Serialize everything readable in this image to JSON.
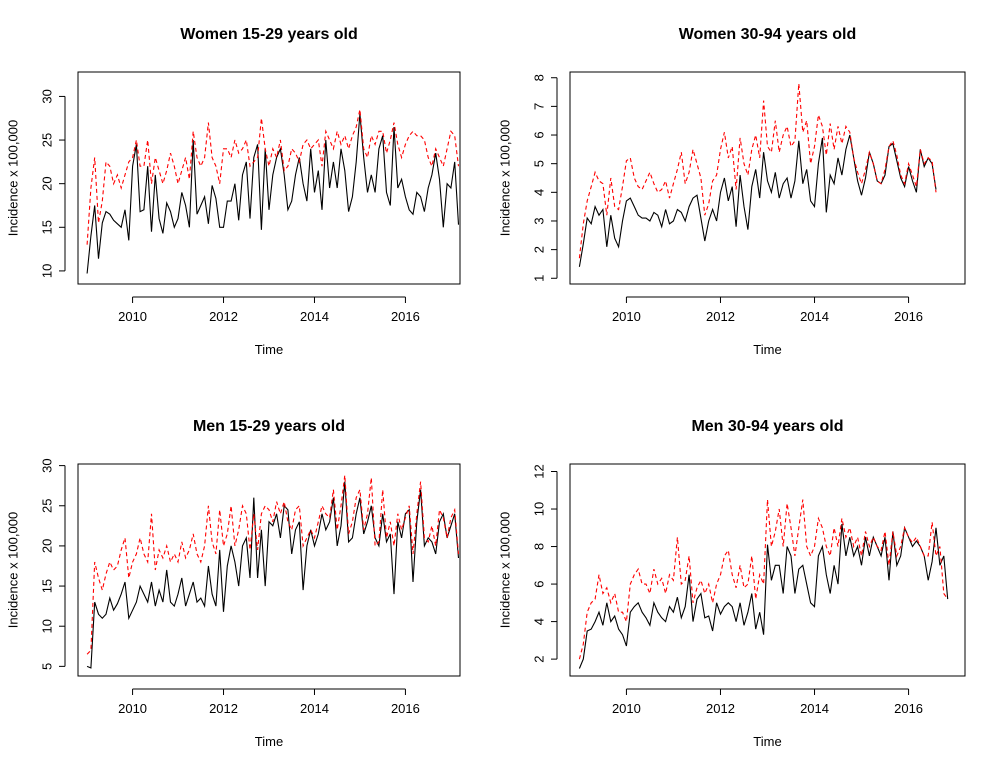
{
  "chart_data": [
    {
      "type": "line",
      "title": "Women 15-29 years old",
      "xlabel": "Time",
      "ylabel": "Incidence x 100,000",
      "xlim": [
        2008.8,
        2017.2
      ],
      "ylim": [
        8.5,
        32.8
      ],
      "xticks": [
        "2010",
        "2012",
        "2014",
        "2016"
      ],
      "yticks": [
        "10",
        "15",
        "20",
        "25",
        "30"
      ],
      "grid": false,
      "x_start": 2009.0,
      "x_step": 0.08333,
      "series": [
        {
          "color": "#000000",
          "dash": "solid",
          "values": [
            9.7,
            14.0,
            17.5,
            11.4,
            15.5,
            16.8,
            16.5,
            15.8,
            15.4,
            15.0,
            17.0,
            13.5,
            22.0,
            24.5,
            16.8,
            17.0,
            22.0,
            14.5,
            21.0,
            16.0,
            14.3,
            17.8,
            16.8,
            15.0,
            16.0,
            19.0,
            17.5,
            15.0,
            25.0,
            16.5,
            17.5,
            18.5,
            15.4,
            19.8,
            18.3,
            15.0,
            15.0,
            18.0,
            18.0,
            20.0,
            15.8,
            21.0,
            22.5,
            16.0,
            23.0,
            24.5,
            14.7,
            24.0,
            17.0,
            21.0,
            23.0,
            24.0,
            21.0,
            17.0,
            18.0,
            21.0,
            23.0,
            20.0,
            18.0,
            24.0,
            19.0,
            21.5,
            17.0,
            25.0,
            19.5,
            22.5,
            19.5,
            24.0,
            21.5,
            16.8,
            18.5,
            22.5,
            28.0,
            23.0,
            19.0,
            21.0,
            19.0,
            24.0,
            25.5,
            19.0,
            17.5,
            26.5,
            19.5,
            20.5,
            18.5,
            17.0,
            16.5,
            19.0,
            18.5,
            16.8,
            19.5,
            21.0,
            23.5,
            20.5,
            15.0,
            20.0,
            19.5,
            22.5,
            15.3
          ]
        },
        {
          "color": "#ff0000",
          "dash": "dashed",
          "values": [
            13.0,
            19.5,
            23.0,
            15.5,
            18.0,
            22.5,
            22.0,
            20.0,
            21.0,
            19.5,
            21.0,
            22.5,
            23.0,
            25.0,
            22.0,
            22.0,
            25.0,
            20.0,
            23.0,
            21.5,
            20.0,
            21.5,
            23.5,
            22.0,
            20.0,
            21.5,
            23.0,
            20.5,
            26.0,
            23.0,
            22.0,
            23.0,
            27.0,
            23.0,
            22.0,
            20.0,
            24.0,
            24.0,
            23.0,
            25.0,
            23.5,
            24.0,
            25.0,
            22.0,
            22.5,
            23.0,
            27.5,
            24.0,
            22.0,
            24.0,
            23.0,
            25.0,
            21.5,
            22.0,
            24.0,
            23.5,
            22.5,
            24.5,
            25.0,
            24.0,
            24.5,
            25.0,
            22.0,
            26.0,
            25.0,
            24.0,
            26.0,
            24.5,
            25.5,
            24.0,
            25.5,
            26.5,
            28.5,
            24.0,
            23.0,
            25.5,
            24.5,
            26.0,
            26.0,
            23.5,
            25.0,
            27.0,
            24.5,
            23.0,
            24.5,
            25.5,
            26.0,
            25.5,
            25.5,
            25.0,
            23.0,
            22.0,
            24.0,
            23.0,
            22.0,
            24.0,
            26.0,
            25.5,
            22.0
          ]
        }
      ]
    },
    {
      "type": "line",
      "title": "Women 30-94 years old",
      "xlabel": "Time",
      "ylabel": "Incidence x 100,000",
      "xlim": [
        2008.8,
        2017.2
      ],
      "ylim": [
        0.8,
        8.2
      ],
      "xticks": [
        "2010",
        "2012",
        "2014",
        "2016"
      ],
      "yticks": [
        "1",
        "2",
        "3",
        "4",
        "5",
        "6",
        "7",
        "8"
      ],
      "grid": false,
      "x_start": 2009.0,
      "x_step": 0.08333,
      "series": [
        {
          "color": "#000000",
          "dash": "solid",
          "values": [
            1.4,
            2.2,
            3.1,
            2.9,
            3.5,
            3.2,
            3.4,
            2.1,
            3.2,
            2.4,
            2.1,
            3.0,
            3.7,
            3.8,
            3.5,
            3.2,
            3.1,
            3.1,
            3.0,
            3.3,
            3.2,
            2.8,
            3.4,
            2.9,
            3.0,
            3.4,
            3.3,
            3.0,
            3.5,
            3.8,
            3.9,
            3.1,
            2.3,
            3.0,
            3.4,
            3.0,
            4.0,
            4.5,
            3.7,
            4.2,
            2.8,
            4.6,
            3.5,
            2.7,
            4.2,
            4.8,
            3.8,
            5.4,
            4.4,
            4.0,
            4.7,
            3.8,
            4.3,
            4.5,
            3.8,
            4.4,
            5.8,
            4.3,
            4.8,
            3.7,
            3.5,
            5.0,
            5.9,
            3.3,
            4.6,
            4.3,
            5.2,
            4.6,
            5.5,
            6.0,
            5.2,
            4.4,
            3.9,
            4.5,
            5.4,
            5.0,
            4.4,
            4.3,
            4.6,
            5.6,
            5.7,
            5.1,
            4.5,
            4.2,
            4.9,
            4.4,
            4.0,
            5.5,
            4.9,
            5.2,
            5.0,
            4.1
          ]
        },
        {
          "color": "#ff0000",
          "dash": "dashed",
          "values": [
            1.7,
            2.9,
            3.7,
            4.2,
            4.7,
            4.4,
            4.3,
            3.2,
            4.5,
            3.5,
            3.4,
            4.2,
            5.1,
            5.2,
            4.5,
            4.2,
            4.1,
            4.4,
            4.7,
            4.3,
            4.0,
            4.1,
            4.4,
            3.8,
            4.3,
            4.8,
            5.4,
            4.3,
            4.7,
            5.5,
            5.0,
            4.5,
            3.2,
            3.6,
            4.4,
            4.6,
            5.5,
            6.1,
            5.2,
            5.6,
            4.1,
            5.9,
            5.0,
            4.6,
            5.5,
            6.0,
            5.2,
            7.2,
            5.6,
            5.4,
            6.5,
            5.4,
            6.0,
            6.3,
            5.6,
            5.8,
            7.8,
            6.1,
            6.5,
            5.0,
            5.6,
            6.7,
            6.3,
            5.3,
            6.4,
            5.5,
            6.3,
            5.7,
            6.3,
            6.1,
            5.2,
            4.7,
            4.3,
            4.8,
            5.4,
            5.0,
            4.4,
            4.3,
            4.8,
            5.6,
            5.8,
            5.3,
            4.6,
            4.3,
            5.0,
            4.6,
            4.2,
            5.5,
            5.0,
            5.2,
            5.1,
            4.0
          ]
        }
      ]
    },
    {
      "type": "line",
      "title": "Men 15-29 years old",
      "xlabel": "Time",
      "ylabel": "Incidence x 100,000",
      "xlim": [
        2008.8,
        2017.2
      ],
      "ylim": [
        3.8,
        30.2
      ],
      "xticks": [
        "2010",
        "2012",
        "2014",
        "2016"
      ],
      "yticks": [
        "5",
        "10",
        "15",
        "20",
        "25",
        "30"
      ],
      "grid": false,
      "x_start": 2009.0,
      "x_step": 0.08333,
      "series": [
        {
          "color": "#000000",
          "dash": "solid",
          "values": [
            5.0,
            4.8,
            13.0,
            11.5,
            11.0,
            11.5,
            13.5,
            12.0,
            12.8,
            14.0,
            15.5,
            11.0,
            12.0,
            13.0,
            15.0,
            14.0,
            13.0,
            15.5,
            12.5,
            14.5,
            13.0,
            17.0,
            13.0,
            12.5,
            14.0,
            16.0,
            12.5,
            14.0,
            15.5,
            13.0,
            13.5,
            12.5,
            17.5,
            14.0,
            12.5,
            19.5,
            11.8,
            17.5,
            20.0,
            18.0,
            15.0,
            20.0,
            21.0,
            16.0,
            26.0,
            16.0,
            22.0,
            15.0,
            23.0,
            22.5,
            24.0,
            21.0,
            25.0,
            24.5,
            19.0,
            22.0,
            23.0,
            14.5,
            20.0,
            22.0,
            20.0,
            21.5,
            24.0,
            22.0,
            23.0,
            26.0,
            20.0,
            22.5,
            28.0,
            20.5,
            21.0,
            24.0,
            26.0,
            21.5,
            23.0,
            25.0,
            21.0,
            20.0,
            24.0,
            20.5,
            21.5,
            14.0,
            23.0,
            21.0,
            24.0,
            24.5,
            15.5,
            23.0,
            27.0,
            20.0,
            21.0,
            20.5,
            19.0,
            23.0,
            24.0,
            21.0,
            22.5,
            24.0,
            18.5
          ]
        },
        {
          "color": "#ff0000",
          "dash": "dashed",
          "values": [
            6.5,
            7.0,
            18.0,
            16.0,
            14.5,
            16.5,
            18.0,
            17.0,
            17.5,
            19.5,
            21.0,
            16.0,
            18.0,
            19.0,
            21.0,
            19.0,
            18.0,
            24.0,
            17.0,
            19.5,
            18.5,
            20.0,
            18.0,
            19.0,
            18.0,
            20.5,
            18.5,
            19.5,
            21.5,
            19.0,
            18.0,
            20.0,
            25.0,
            20.5,
            19.0,
            24.5,
            20.0,
            21.5,
            25.0,
            20.0,
            22.0,
            25.0,
            24.0,
            19.5,
            24.0,
            19.5,
            24.0,
            25.0,
            24.5,
            23.0,
            25.5,
            24.0,
            25.5,
            23.0,
            22.0,
            24.5,
            25.0,
            20.0,
            21.0,
            22.0,
            21.0,
            23.0,
            25.0,
            24.0,
            23.5,
            27.0,
            22.0,
            25.0,
            28.8,
            21.5,
            23.0,
            26.0,
            27.0,
            22.0,
            24.0,
            28.5,
            20.0,
            20.5,
            27.0,
            21.0,
            23.0,
            20.0,
            24.0,
            22.0,
            23.5,
            25.0,
            19.0,
            24.0,
            28.0,
            21.0,
            20.5,
            22.5,
            20.0,
            24.5,
            23.5,
            21.0,
            23.5,
            24.5,
            19.0
          ]
        }
      ]
    },
    {
      "type": "line",
      "title": "Men 30-94 years old",
      "xlabel": "Time",
      "ylabel": "Incidence x 100,000",
      "xlim": [
        2008.8,
        2017.2
      ],
      "ylim": [
        1.1,
        12.4
      ],
      "xticks": [
        "2010",
        "2012",
        "2014",
        "2016"
      ],
      "yticks": [
        "2",
        "4",
        "6",
        "8",
        "10",
        "12"
      ],
      "grid": false,
      "x_start": 2009.0,
      "x_step": 0.08333,
      "series": [
        {
          "color": "#000000",
          "dash": "solid",
          "values": [
            1.5,
            2.0,
            3.5,
            3.6,
            4.0,
            4.5,
            3.8,
            5.0,
            4.0,
            4.3,
            3.6,
            3.3,
            2.7,
            4.5,
            4.8,
            5.0,
            4.5,
            4.2,
            3.8,
            5.0,
            4.5,
            4.2,
            4.0,
            4.8,
            4.5,
            5.3,
            4.2,
            4.8,
            6.5,
            4.0,
            5.2,
            5.5,
            4.2,
            4.3,
            3.5,
            5.0,
            4.4,
            4.8,
            5.0,
            4.8,
            4.0,
            5.0,
            3.8,
            4.5,
            5.5,
            3.6,
            4.5,
            3.3,
            8.1,
            6.2,
            7.0,
            7.0,
            5.5,
            8.0,
            7.5,
            5.5,
            6.8,
            7.0,
            6.0,
            5.0,
            4.8,
            7.5,
            8.0,
            6.5,
            5.5,
            7.0,
            6.0,
            9.2,
            7.5,
            8.5,
            7.5,
            8.0,
            7.0,
            8.5,
            7.5,
            8.5,
            8.0,
            7.5,
            8.5,
            6.2,
            8.8,
            7.0,
            7.5,
            9.0,
            8.5,
            8.0,
            8.3,
            8.0,
            7.5,
            6.2,
            7.2,
            9.0,
            7.0,
            7.5,
            5.2
          ]
        },
        {
          "color": "#ff0000",
          "dash": "dashed",
          "values": [
            2.0,
            2.8,
            4.5,
            5.0,
            5.2,
            6.5,
            5.5,
            5.8,
            5.0,
            5.5,
            4.5,
            4.5,
            4.0,
            6.0,
            6.5,
            6.8,
            6.0,
            6.0,
            5.5,
            6.8,
            6.0,
            6.3,
            5.5,
            6.5,
            6.2,
            8.5,
            6.0,
            6.2,
            7.5,
            5.0,
            5.8,
            6.2,
            5.5,
            6.0,
            5.0,
            6.0,
            6.5,
            7.5,
            7.8,
            6.5,
            5.8,
            7.0,
            5.8,
            6.0,
            7.5,
            5.2,
            6.5,
            6.0,
            10.5,
            8.0,
            8.8,
            10.0,
            8.0,
            10.3,
            9.0,
            7.5,
            9.0,
            10.5,
            8.0,
            7.5,
            8.0,
            9.5,
            9.0,
            8.0,
            7.5,
            9.0,
            8.0,
            9.5,
            8.5,
            9.0,
            8.0,
            8.5,
            7.5,
            8.8,
            8.0,
            8.5,
            8.0,
            7.8,
            8.8,
            7.0,
            8.8,
            7.5,
            8.0,
            9.0,
            8.5,
            8.2,
            8.5,
            8.0,
            7.5,
            7.5,
            9.3,
            7.5,
            8.0,
            5.5,
            5.2
          ]
        }
      ]
    }
  ]
}
